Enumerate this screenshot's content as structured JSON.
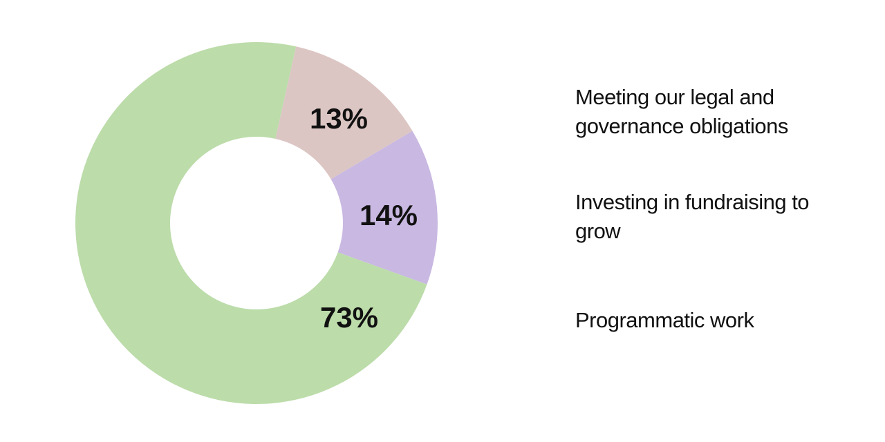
{
  "chart_data": {
    "type": "donut",
    "categories": [
      "Meeting our legal and governance obligations",
      "Investing in fundraising to grow",
      "Programmatic work"
    ],
    "values": [
      13,
      14,
      73
    ],
    "value_labels": [
      "13%",
      "14%",
      "73%"
    ],
    "colors": [
      "#dcc6c4",
      "#c9b8e2",
      "#bcdcaa"
    ]
  }
}
